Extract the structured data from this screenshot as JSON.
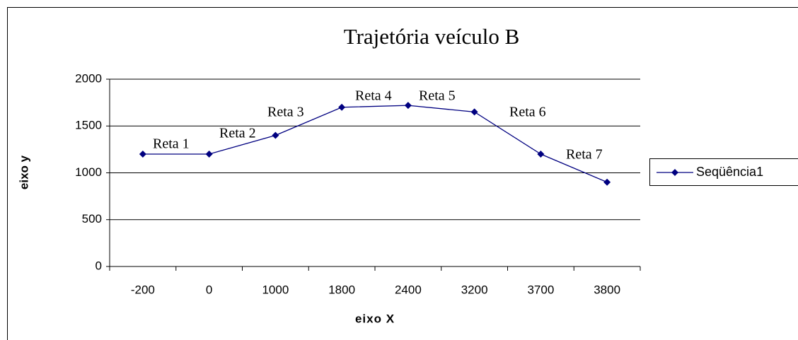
{
  "chart_data": {
    "type": "line",
    "title": "Trajetória veículo B",
    "x_label": "eixo X",
    "y_label": "eixo y",
    "categories": [
      "-200",
      "0",
      "1000",
      "1800",
      "2400",
      "3200",
      "3700",
      "3800"
    ],
    "series": [
      {
        "name": "Seqüência1",
        "color": "#000080",
        "values": [
          1200,
          1200,
          1400,
          1700,
          1720,
          1650,
          1200,
          900
        ]
      }
    ],
    "annotations": [
      "Reta 1",
      "Reta 2",
      "Reta 3",
      "Reta 4",
      "Reta 5",
      "Reta 6",
      "Reta 7"
    ],
    "ylim": [
      0,
      2000
    ],
    "yticks": [
      0,
      500,
      1000,
      1500,
      2000
    ],
    "grid": true,
    "legend": "right"
  }
}
